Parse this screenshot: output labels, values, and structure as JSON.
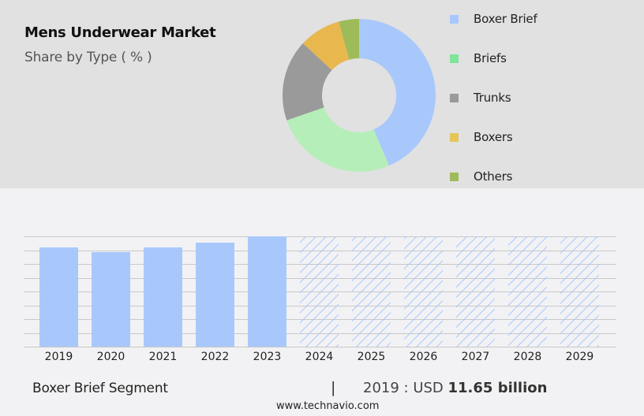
{
  "header": {
    "title": "Mens Underwear Market",
    "subtitle": "Share by Type ( % )"
  },
  "legend": [
    {
      "label": "Boxer Brief",
      "color": "#a8c8fc"
    },
    {
      "label": "Briefs",
      "color": "#7ee59a"
    },
    {
      "label": "Trunks",
      "color": "#9a9a9a"
    },
    {
      "label": "Boxers",
      "color": "#e4c557"
    },
    {
      "label": "Others",
      "color": "#9ebb5a"
    }
  ],
  "footer": {
    "segment": "Boxer Brief Segment",
    "separator": "|",
    "year_label": "2019 : USD ",
    "value": "11.65 billion",
    "url": "www.technavio.com"
  },
  "colors": {
    "bar_actual": "#a8c8fc",
    "bar_forecast_hatch": "#a8c8fc",
    "gridline": "#c8c8c8",
    "top_panel_bg": "#e1e1e1",
    "bottom_panel_bg": "#f2f2f4"
  },
  "chart_data": [
    {
      "type": "pie",
      "variant": "donut",
      "title": "Mens Underwear Market",
      "subtitle": "Share by Type ( % )",
      "categories": [
        "Boxer Brief",
        "Briefs",
        "Trunks",
        "Boxers",
        "Others"
      ],
      "values": [
        43.6,
        26.1,
        17.2,
        8.8,
        4.3
      ],
      "slice_colors": [
        "#a8c8fc",
        "#b6eeb9",
        "#9a9a9a",
        "#e8b84f",
        "#9ebb5a"
      ],
      "legend_position": "right",
      "start_angle_deg": 0,
      "direction": "clockwise"
    },
    {
      "type": "bar",
      "title": "Boxer Brief Segment",
      "categories": [
        "2019",
        "2020",
        "2021",
        "2022",
        "2023",
        "2024",
        "2025",
        "2026",
        "2027",
        "2028",
        "2029"
      ],
      "values": [
        11.65,
        11.1,
        11.65,
        12.2,
        12.95,
        null,
        null,
        null,
        null,
        null,
        null
      ],
      "forecast": [
        false,
        false,
        false,
        false,
        false,
        true,
        true,
        true,
        true,
        true,
        true
      ],
      "units": "USD billion",
      "annotation": "2019 : USD 11.65 billion",
      "xlabel": "",
      "ylabel": "",
      "ylim": [
        0,
        12.95
      ],
      "grid": true,
      "gridline_count": 9,
      "y_tick_labels_visible": false
    }
  ]
}
